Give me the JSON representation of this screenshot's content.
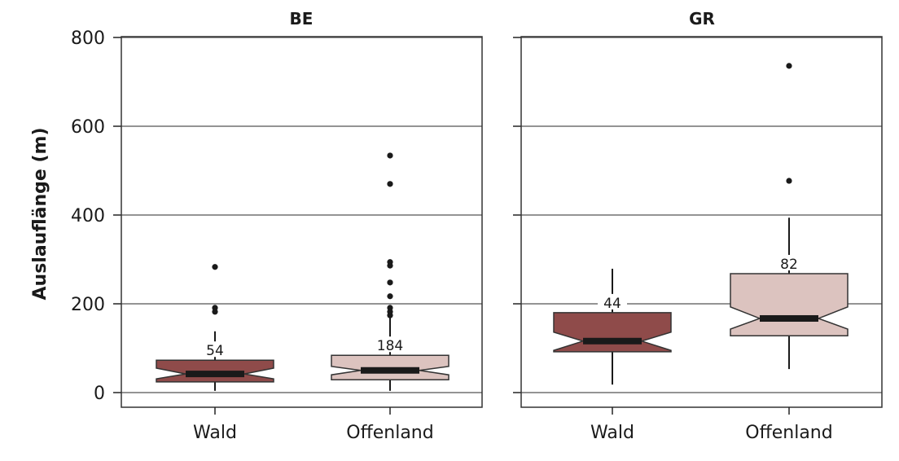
{
  "chart_data": {
    "type": "boxplot",
    "ylabel": "Auslauflänge (m)",
    "ylim": [
      0,
      800
    ],
    "yticks": [
      0,
      200,
      400,
      600,
      800
    ],
    "grid": true,
    "notched": true,
    "colors": {
      "Wald": "#8f4b4a",
      "Offenland": "#dcc3bf",
      "median": "#1a1a1a",
      "grid": "#555555"
    },
    "panels": [
      {
        "title": "BE",
        "categories": [
          "Wald",
          "Offenland"
        ],
        "boxes": [
          {
            "category": "Wald",
            "n": 54,
            "whisker_low": 4,
            "q1": 24,
            "median": 42,
            "q3": 73,
            "whisker_high": 138,
            "notch_low": 31,
            "notch_high": 55,
            "outliers": [
              182,
              191,
              283
            ]
          },
          {
            "category": "Offenland",
            "n": 184,
            "whisker_low": 4,
            "q1": 29,
            "median": 50,
            "q3": 84,
            "whisker_high": 171,
            "notch_low": 40,
            "notch_high": 59,
            "outliers": [
              174,
              182,
              191,
              217,
              248,
              286,
              294,
              470,
              534
            ]
          }
        ]
      },
      {
        "title": "GR",
        "categories": [
          "Wald",
          "Offenland"
        ],
        "boxes": [
          {
            "category": "Wald",
            "n": 44,
            "whisker_low": 18,
            "q1": 92,
            "median": 116,
            "q3": 180,
            "whisker_high": 279,
            "notch_low": 95,
            "notch_high": 136,
            "outliers": []
          },
          {
            "category": "Offenland",
            "n": 82,
            "whisker_low": 53,
            "q1": 128,
            "median": 167,
            "q3": 268,
            "whisker_high": 394,
            "notch_low": 143,
            "notch_high": 193,
            "outliers": [
              477,
              736
            ]
          }
        ]
      }
    ]
  }
}
